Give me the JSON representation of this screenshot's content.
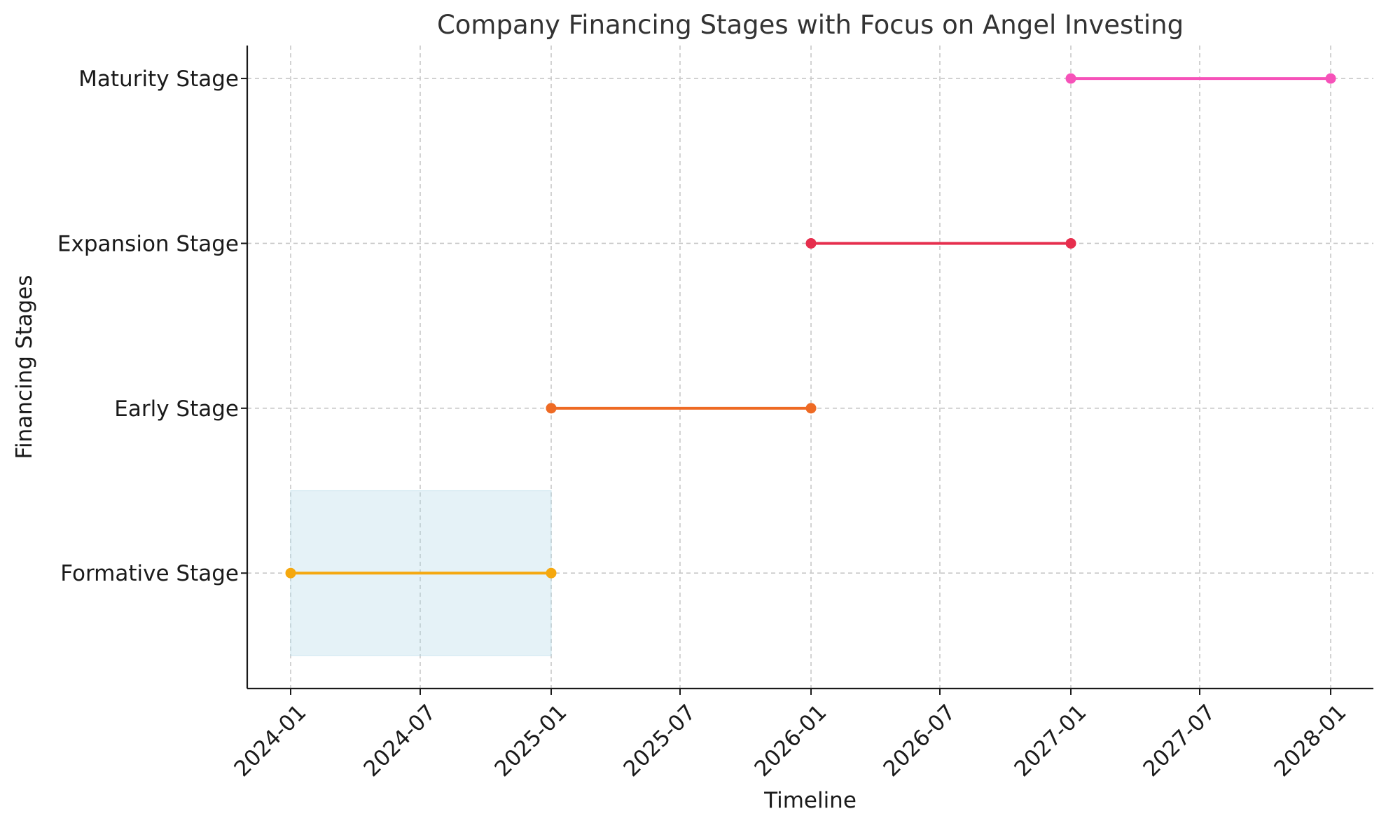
{
  "chart_data": {
    "type": "line",
    "title": "Company Financing Stages with Focus on Angel Investing",
    "xlabel": "Timeline",
    "ylabel": "Financing Stages",
    "x_ticks": [
      "2024-01",
      "2024-07",
      "2025-01",
      "2025-07",
      "2026-01",
      "2026-07",
      "2027-01",
      "2027-07",
      "2028-01"
    ],
    "xlim": [
      "2023-11-01",
      "2028-03-01"
    ],
    "categories": [
      "Formative Stage",
      "Early Stage",
      "Expansion Stage",
      "Maturity Stage"
    ],
    "grid": true,
    "series": [
      {
        "stage": "Formative Stage",
        "x": [
          "2024-01-01",
          "2025-01-01"
        ],
        "color": "#f5a80f"
      },
      {
        "stage": "Early Stage",
        "x": [
          "2025-01-01",
          "2026-01-01"
        ],
        "color": "#ee6a24"
      },
      {
        "stage": "Expansion Stage",
        "x": [
          "2026-01-01",
          "2027-01-01"
        ],
        "color": "#e62e4d"
      },
      {
        "stage": "Maturity Stage",
        "x": [
          "2027-01-01",
          "2028-01-01"
        ],
        "color": "#f652b9"
      }
    ],
    "highlight": {
      "x": [
        "2024-01-01",
        "2025-01-01"
      ],
      "y": [
        "Formative Stage"
      ],
      "color": "#add8e6"
    }
  }
}
